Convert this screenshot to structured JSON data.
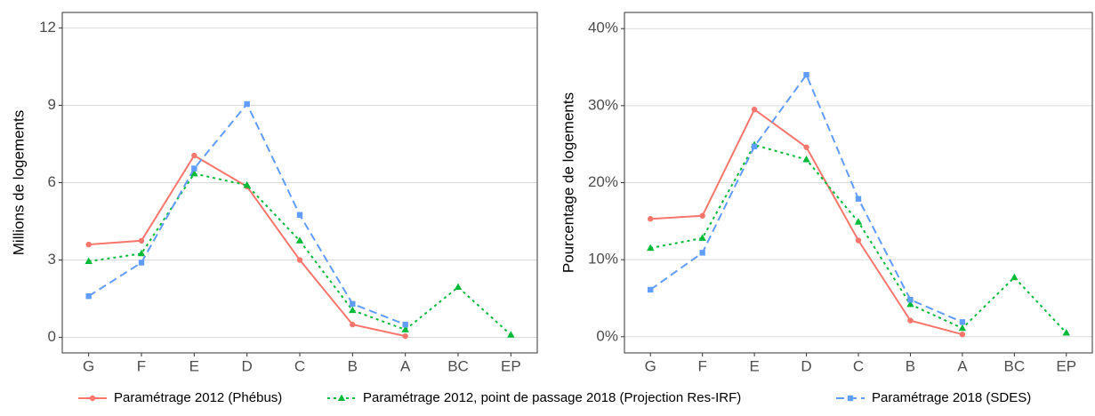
{
  "chart_data": [
    {
      "type": "line",
      "ylabel": "Millions de logements",
      "categories": [
        "G",
        "F",
        "E",
        "D",
        "C",
        "B",
        "A",
        "BC",
        "EP"
      ],
      "ylim": [
        -0.6,
        12.6
      ],
      "yticks": [
        0,
        3,
        6,
        9,
        12
      ],
      "grid": true,
      "legend": "bottom",
      "series": [
        {
          "name": "Paramétrage 2012 (Phébus)",
          "color": "#F8766D",
          "marker": "circle",
          "dash": "solid",
          "values": [
            3.6,
            3.75,
            7.05,
            5.85,
            3.0,
            0.5,
            0.05,
            null,
            null
          ]
        },
        {
          "name": "Paramétrage 2012, point de passage 2018 (Projection Res-IRF)",
          "color": "#00BA38",
          "marker": "triangle",
          "dash": "dotted",
          "values": [
            2.95,
            3.25,
            6.35,
            5.9,
            3.75,
            1.05,
            0.3,
            1.95,
            0.1
          ]
        },
        {
          "name": "Paramétrage 2018 (SDES)",
          "color": "#619CFF",
          "marker": "square",
          "dash": "dashed",
          "values": [
            1.6,
            2.9,
            6.55,
            9.05,
            4.75,
            1.3,
            0.5,
            null,
            null
          ]
        }
      ]
    },
    {
      "type": "line",
      "ylabel": "Pourcentage de logements",
      "categories": [
        "G",
        "F",
        "E",
        "D",
        "C",
        "B",
        "A",
        "BC",
        "EP"
      ],
      "ylim": [
        -2.1,
        42.1
      ],
      "yticks": [
        {
          "value": 0,
          "label": "0%"
        },
        {
          "value": 10,
          "label": "10%"
        },
        {
          "value": 20,
          "label": "20%"
        },
        {
          "value": 30,
          "label": "30%"
        },
        {
          "value": 40,
          "label": "40%"
        }
      ],
      "grid": true,
      "series": [
        {
          "name": "Paramétrage 2012 (Phébus)",
          "color": "#F8766D",
          "marker": "circle",
          "dash": "solid",
          "values": [
            15.3,
            15.7,
            29.5,
            24.6,
            12.5,
            2.1,
            0.3,
            null,
            null
          ]
        },
        {
          "name": "Paramétrage 2012, point de passage 2018 (Projection Res-IRF)",
          "color": "#00BA38",
          "marker": "triangle",
          "dash": "dotted",
          "values": [
            11.5,
            12.8,
            24.9,
            23.0,
            14.9,
            4.2,
            1.1,
            7.7,
            0.5
          ]
        },
        {
          "name": "Paramétrage 2018 (SDES)",
          "color": "#619CFF",
          "marker": "square",
          "dash": "dashed",
          "values": [
            6.1,
            10.9,
            24.7,
            34.0,
            17.9,
            4.8,
            1.9,
            null,
            null
          ]
        }
      ]
    }
  ]
}
